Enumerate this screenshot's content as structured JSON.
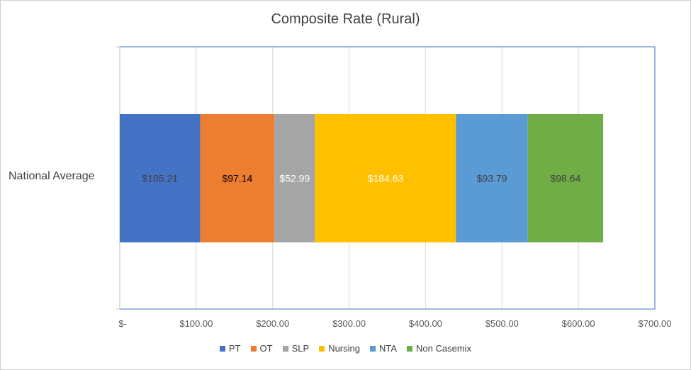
{
  "chart_data": {
    "type": "bar",
    "orientation": "horizontal-stacked",
    "title": "Composite Rate (Rural)",
    "categories": [
      "National Average"
    ],
    "series": [
      {
        "name": "PT",
        "values": [
          105.21
        ],
        "label": "$105.21",
        "color": "#4472C4",
        "label_color": "#404040"
      },
      {
        "name": "OT",
        "values": [
          97.14
        ],
        "label": "$97.14",
        "color": "#ED7D31",
        "label_color": "#000000"
      },
      {
        "name": "SLP",
        "values": [
          52.99
        ],
        "label": "$52.99",
        "color": "#A5A5A5",
        "label_color": "#ffffff"
      },
      {
        "name": "Nursing",
        "values": [
          184.63
        ],
        "label": "$184.63",
        "color": "#FFC000",
        "label_color": "#ffffff"
      },
      {
        "name": "NTA",
        "values": [
          93.79
        ],
        "label": "$93.79",
        "color": "#5B9BD5",
        "label_color": "#404040"
      },
      {
        "name": "Non Casemix",
        "values": [
          98.64
        ],
        "label": "$98.64",
        "color": "#70AD47",
        "label_color": "#404040"
      }
    ],
    "xlim": [
      0,
      700
    ],
    "xticks": [
      0,
      100,
      200,
      300,
      400,
      500,
      600,
      700
    ],
    "xtick_labels": [
      "$-",
      "$100.00",
      "$200.00",
      "$300.00",
      "$400.00",
      "$500.00",
      "$600.00",
      "$700.00"
    ],
    "grid": true,
    "legend_position": "bottom"
  }
}
